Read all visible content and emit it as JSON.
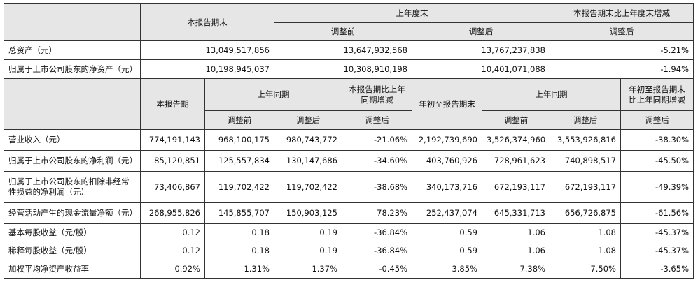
{
  "table1": {
    "header": {
      "row1": [
        "本报告期末",
        "上年度末",
        "本报告期末比上年度末增减"
      ],
      "row2": [
        "调整前",
        "调整后",
        "调整后"
      ]
    },
    "rows": [
      [
        "总资产（元）",
        "13,049,517,856",
        "13,647,932,568",
        "13,767,237,838",
        "-5.21%"
      ],
      [
        "归属于上市公司股东的净资产（元）",
        "10,198,945,037",
        "10,308,910,198",
        "10,401,071,088",
        "-1.94%"
      ]
    ]
  },
  "table2": {
    "header": {
      "row1": [
        "本报告期",
        "上年同期",
        "本报告期比上年同期增减",
        "年初至报告期末",
        "上年同期",
        "年初至报告期末比上年同期增减"
      ],
      "row2": [
        "调整前",
        "调整后",
        "调整后",
        "调整前",
        "调整后",
        "调整后"
      ]
    },
    "rows": [
      [
        "营业收入（元）",
        "774,191,143",
        "968,100,175",
        "980,743,772",
        "-21.06%",
        "2,192,739,690",
        "3,526,374,960",
        "3,553,926,816",
        "-38.30%"
      ],
      [
        "归属于上市公司股东的净利润（元）",
        "85,120,851",
        "125,557,834",
        "130,147,686",
        "-34.60%",
        "403,760,926",
        "728,961,623",
        "740,898,517",
        "-45.50%"
      ],
      [
        "归属于上市公司股东的扣除非经常性损益的净利润（元）",
        "73,406,867",
        "119,702,422",
        "119,702,422",
        "-38.68%",
        "340,173,716",
        "672,193,117",
        "672,193,117",
        "-49.39%"
      ],
      [
        "经营活动产生的现金流量净额（元）",
        "268,955,826",
        "145,855,707",
        "150,903,125",
        "78.23%",
        "252,437,074",
        "645,331,713",
        "656,726,875",
        "-61.56%"
      ],
      [
        "基本每股收益（元/股）",
        "0.12",
        "0.18",
        "0.19",
        "-36.84%",
        "0.59",
        "1.06",
        "1.08",
        "-45.37%"
      ],
      [
        "稀释每股收益（元/股）",
        "0.12",
        "0.18",
        "0.19",
        "-36.84%",
        "0.59",
        "1.06",
        "1.08",
        "-45.37%"
      ],
      [
        "加权平均净资产收益率",
        "0.92%",
        "1.31%",
        "1.37%",
        "-0.45%",
        "3.85%",
        "7.38%",
        "7.50%",
        "-3.65%"
      ]
    ]
  }
}
